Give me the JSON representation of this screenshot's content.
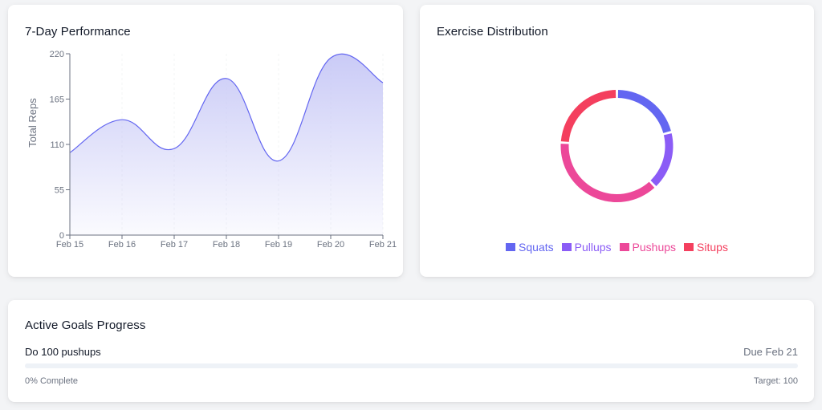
{
  "performance": {
    "title": "7-Day Performance",
    "chart_data": {
      "type": "area",
      "title": "7-Day Performance",
      "xlabel": "",
      "ylabel": "Total Reps",
      "categories": [
        "Feb 15",
        "Feb 16",
        "Feb 17",
        "Feb 18",
        "Feb 19",
        "Feb 20",
        "Feb 21"
      ],
      "values": [
        100,
        140,
        105,
        190,
        90,
        215,
        185
      ],
      "ylim": [
        0,
        220
      ],
      "yticks": [
        0,
        55,
        110,
        165,
        220
      ],
      "line_color": "#6366f1",
      "fill_color": "#c7c8f6",
      "grid": false
    }
  },
  "distribution": {
    "title": "Exercise Distribution",
    "chart_data": {
      "type": "pie",
      "title": "Exercise Distribution",
      "labels": [
        "Squats",
        "Pullups",
        "Pushups",
        "Situps"
      ],
      "values": [
        21,
        17,
        38,
        24
      ],
      "colors": [
        "#6366f1",
        "#8b5cf6",
        "#ec4899",
        "#f43f5e"
      ],
      "legend": "bottom"
    }
  },
  "goals": {
    "title": "Active Goals Progress",
    "items": [
      {
        "name": "Do 100 pushups",
        "due": "Due Feb 21",
        "progress": 0,
        "complete_text": "0% Complete",
        "target_text": "Target: 100"
      }
    ]
  }
}
